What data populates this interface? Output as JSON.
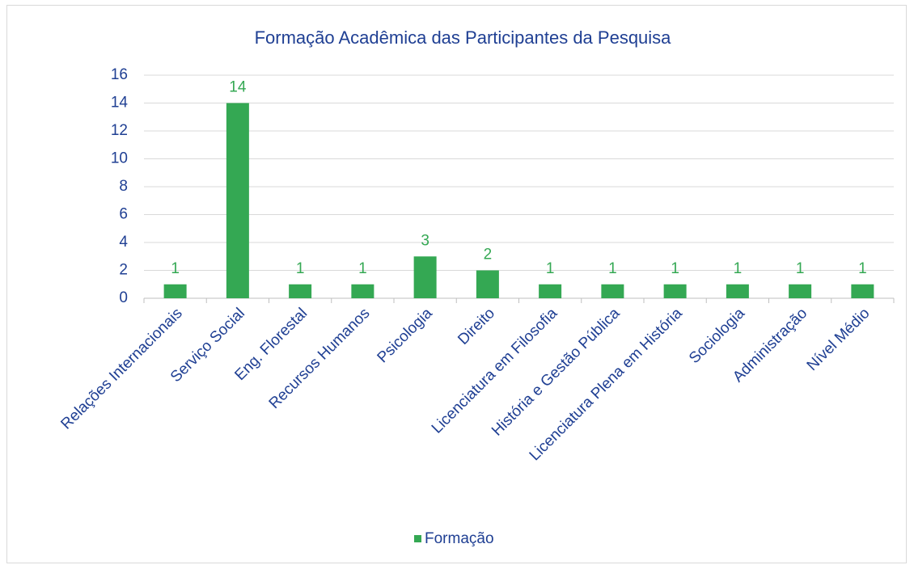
{
  "chart_data": {
    "type": "bar",
    "title": "Formação Acadêmica das Participantes da Pesquisa",
    "categories": [
      "Relações Internacionais",
      "Serviço Social",
      "Eng. Florestal",
      "Recursos Humanos",
      "Psicologia",
      "Direito",
      "Licenciatura em Filosofia",
      "História e Gestão Pública",
      "Licenciatura Plena em História",
      "Sociologia",
      "Administração",
      "Nível Médio"
    ],
    "series": [
      {
        "name": "Formação",
        "color": "#34a853",
        "values": [
          1,
          14,
          1,
          1,
          3,
          2,
          1,
          1,
          1,
          1,
          1,
          1
        ]
      }
    ],
    "ylim": [
      0,
      16
    ],
    "yticks": [
      0,
      2,
      4,
      6,
      8,
      10,
      12,
      14,
      16
    ],
    "grid": true,
    "legend": "bottom"
  }
}
